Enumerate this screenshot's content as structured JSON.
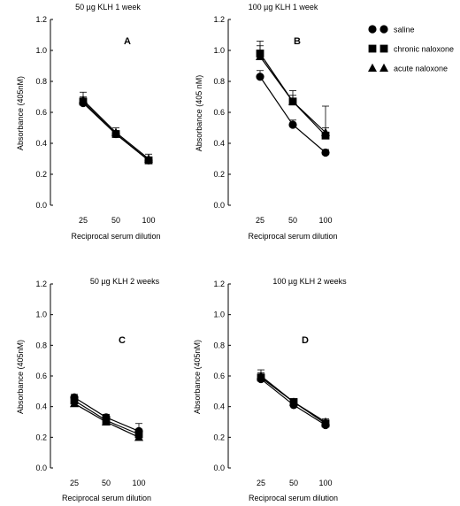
{
  "figure": {
    "legend": {
      "entries": [
        {
          "label": "saline",
          "marker": "circle"
        },
        {
          "label": "chronic naloxone",
          "marker": "square"
        },
        {
          "label": "acute naloxone",
          "marker": "triangle"
        }
      ]
    }
  },
  "chart_data": [
    {
      "type": "line",
      "panel": "A",
      "title": "50 µg KLH 1 week",
      "xlabel": "Reciprocal serum dilution",
      "ylabel": "Absorbance (405nM)",
      "categories": [
        "25",
        "50",
        "100"
      ],
      "ylim": [
        0,
        1.2
      ],
      "yticks": [
        "0.0",
        "0.2",
        "0.4",
        "0.6",
        "0.8",
        "1.0",
        "1.2"
      ],
      "series": [
        {
          "name": "saline",
          "marker": "circle",
          "values": [
            0.66,
            0.46,
            0.29
          ],
          "errors": [
            0.03,
            0.02,
            0.02
          ]
        },
        {
          "name": "chronic naloxone",
          "marker": "square",
          "values": [
            0.67,
            0.46,
            0.29
          ],
          "errors": [
            0.03,
            0.02,
            0.02
          ]
        },
        {
          "name": "acute naloxone",
          "marker": "triangle",
          "values": [
            0.68,
            0.47,
            0.3
          ],
          "errors": [
            0.05,
            0.03,
            0.03
          ]
        }
      ]
    },
    {
      "type": "line",
      "panel": "B",
      "title": "100 µg KLH 1 week",
      "xlabel": "Reciprocal serum dilution",
      "ylabel": "Absorbance (405 nM)",
      "categories": [
        "25",
        "50",
        "100"
      ],
      "ylim": [
        0,
        1.2
      ],
      "yticks": [
        "0.0",
        "0.2",
        "0.4",
        "0.6",
        "0.8",
        "1.0",
        "1.2"
      ],
      "series": [
        {
          "name": "saline",
          "marker": "circle",
          "values": [
            0.83,
            0.52,
            0.34
          ],
          "errors": [
            0.04,
            0.03,
            0.02
          ]
        },
        {
          "name": "chronic naloxone",
          "marker": "square",
          "values": [
            0.98,
            0.67,
            0.45
          ],
          "errors": [
            0.05,
            0.04,
            0.05
          ]
        },
        {
          "name": "acute naloxone",
          "marker": "triangle",
          "values": [
            0.96,
            0.67,
            0.47
          ],
          "errors": [
            0.1,
            0.07,
            0.17
          ]
        }
      ]
    },
    {
      "type": "line",
      "panel": "C",
      "title": "50 µg KLH 2 weeks",
      "xlabel": "Reciprocal serum dilution",
      "ylabel": "Absorbance (405nM)",
      "categories": [
        "25",
        "50",
        "100"
      ],
      "ylim": [
        0,
        1.2
      ],
      "yticks": [
        "0.0",
        "0.2",
        "0.4",
        "0.6",
        "0.8",
        "1.0",
        "1.2"
      ],
      "series": [
        {
          "name": "saline",
          "marker": "circle",
          "values": [
            0.46,
            0.33,
            0.24
          ],
          "errors": [
            0.02,
            0.02,
            0.05
          ]
        },
        {
          "name": "chronic naloxone",
          "marker": "square",
          "values": [
            0.44,
            0.31,
            0.22
          ],
          "errors": [
            0.02,
            0.02,
            0.03
          ]
        },
        {
          "name": "acute naloxone",
          "marker": "triangle",
          "values": [
            0.42,
            0.3,
            0.2
          ],
          "errors": [
            0.03,
            0.02,
            0.02
          ]
        }
      ]
    },
    {
      "type": "line",
      "panel": "D",
      "title": "100 µg KLH 2 weeks",
      "xlabel": "Reciprocal serum dilution",
      "ylabel": "Absorbance (405nM)",
      "categories": [
        "25",
        "50",
        "100"
      ],
      "ylim": [
        0,
        1.2
      ],
      "yticks": [
        "0.0",
        "0.2",
        "0.4",
        "0.6",
        "0.8",
        "1.0",
        "1.2"
      ],
      "series": [
        {
          "name": "saline",
          "marker": "circle",
          "values": [
            0.58,
            0.41,
            0.28
          ],
          "errors": [
            0.03,
            0.02,
            0.02
          ]
        },
        {
          "name": "chronic naloxone",
          "marker": "square",
          "values": [
            0.59,
            0.43,
            0.29
          ],
          "errors": [
            0.03,
            0.02,
            0.02
          ]
        },
        {
          "name": "acute naloxone",
          "marker": "triangle",
          "values": [
            0.6,
            0.43,
            0.3
          ],
          "errors": [
            0.04,
            0.02,
            0.02
          ]
        }
      ]
    }
  ]
}
